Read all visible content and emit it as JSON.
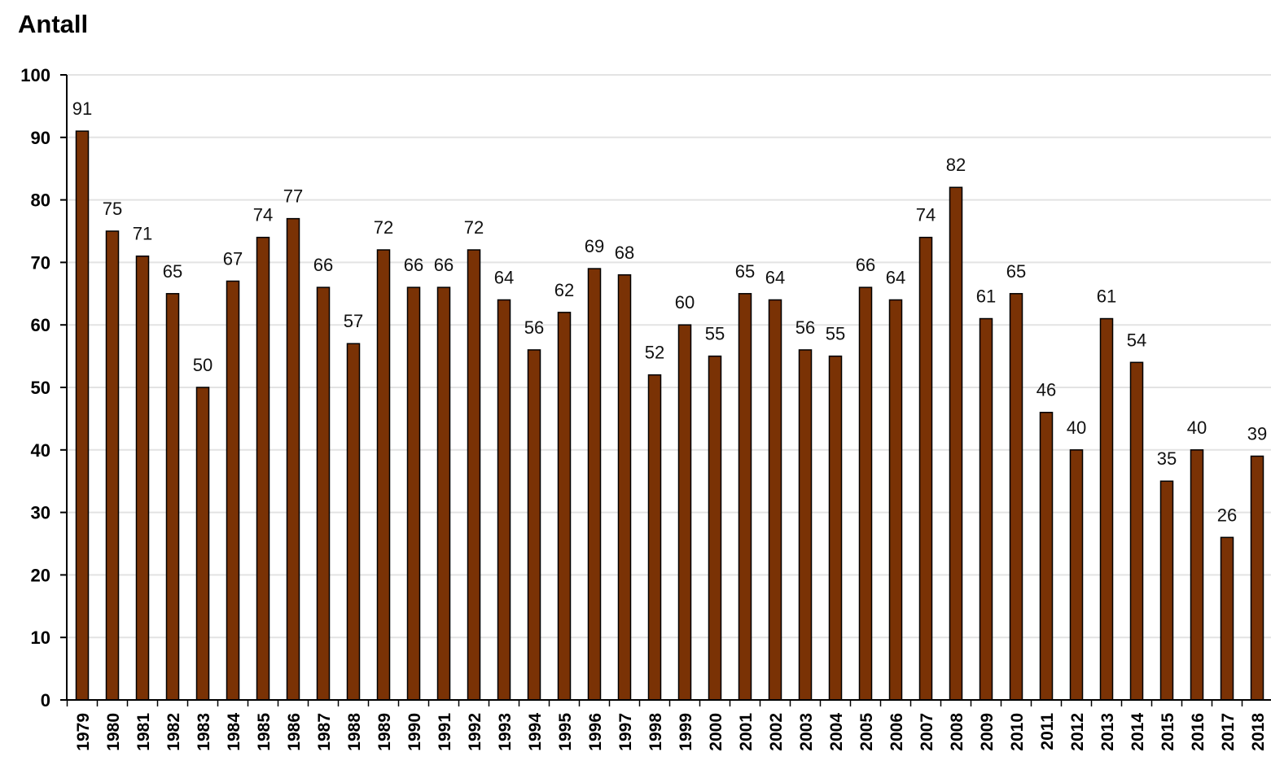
{
  "chart_data": {
    "type": "bar",
    "title": "",
    "ylabel": "Antall",
    "xlabel": "",
    "ylim": [
      0,
      100
    ],
    "yticks": [
      0,
      10,
      20,
      30,
      40,
      50,
      60,
      70,
      80,
      90,
      100
    ],
    "grid": true,
    "bar_color": "#7a3205",
    "categories": [
      "1979",
      "1980",
      "1981",
      "1982",
      "1983",
      "1984",
      "1985",
      "1986",
      "1987",
      "1988",
      "1989",
      "1990",
      "1991",
      "1992",
      "1993",
      "1994",
      "1995",
      "1996",
      "1997",
      "1998",
      "1999",
      "2000",
      "2001",
      "2002",
      "2003",
      "2004",
      "2005",
      "2006",
      "2007",
      "2008",
      "2009",
      "2010",
      "2011",
      "2012",
      "2013",
      "2014",
      "2015",
      "2016",
      "2017",
      "2018"
    ],
    "values": [
      91,
      75,
      71,
      65,
      50,
      67,
      74,
      77,
      66,
      57,
      72,
      66,
      66,
      72,
      64,
      56,
      62,
      69,
      68,
      52,
      60,
      55,
      65,
      64,
      56,
      55,
      66,
      64,
      74,
      82,
      61,
      65,
      46,
      40,
      61,
      54,
      35,
      40,
      26,
      39
    ]
  }
}
